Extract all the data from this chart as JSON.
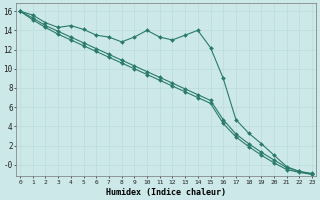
{
  "x": [
    0,
    1,
    2,
    3,
    4,
    5,
    6,
    7,
    8,
    9,
    10,
    11,
    12,
    13,
    14,
    15,
    16,
    17,
    18,
    19,
    20,
    21,
    22,
    23
  ],
  "line_flat": [
    16.0,
    15.6,
    14.8,
    14.3,
    14.5,
    14.1,
    13.5,
    13.3,
    12.8,
    13.3,
    14.0,
    13.3,
    13.0,
    13.5,
    14.0,
    12.2,
    9.0,
    4.7,
    3.3,
    2.2,
    1.0,
    -0.2,
    -0.7,
    -1.0
  ],
  "line_diag1": [
    16.0,
    15.3,
    14.5,
    13.9,
    13.3,
    12.7,
    12.1,
    11.5,
    10.9,
    10.3,
    9.7,
    9.1,
    8.5,
    7.9,
    7.3,
    6.7,
    4.7,
    3.2,
    2.2,
    1.3,
    0.5,
    -0.3,
    -0.7,
    -0.9
  ],
  "line_diag2": [
    16.0,
    15.1,
    14.3,
    13.6,
    13.0,
    12.4,
    11.8,
    11.2,
    10.6,
    10.0,
    9.4,
    8.8,
    8.2,
    7.6,
    7.0,
    6.4,
    4.3,
    2.9,
    1.9,
    1.0,
    0.2,
    -0.5,
    -0.8,
    -1.0
  ],
  "bg_color": "#cce8e8",
  "grid_major_color": "#aacaca",
  "grid_minor_color": "#bbdddd",
  "line_color": "#2a7a6a",
  "xlabel": "Humidex (Indice chaleur)",
  "xlim": [
    0,
    23
  ],
  "ylim": [
    -1.2,
    16.8
  ],
  "yticks": [
    0,
    2,
    4,
    6,
    8,
    10,
    12,
    14,
    16
  ],
  "ytick_labels": [
    "-0",
    "2",
    "4",
    "6",
    "8",
    "10",
    "12",
    "14",
    "16"
  ],
  "xticks": [
    0,
    1,
    2,
    3,
    4,
    5,
    6,
    7,
    8,
    9,
    10,
    11,
    12,
    13,
    14,
    15,
    16,
    17,
    18,
    19,
    20,
    21,
    22,
    23
  ]
}
